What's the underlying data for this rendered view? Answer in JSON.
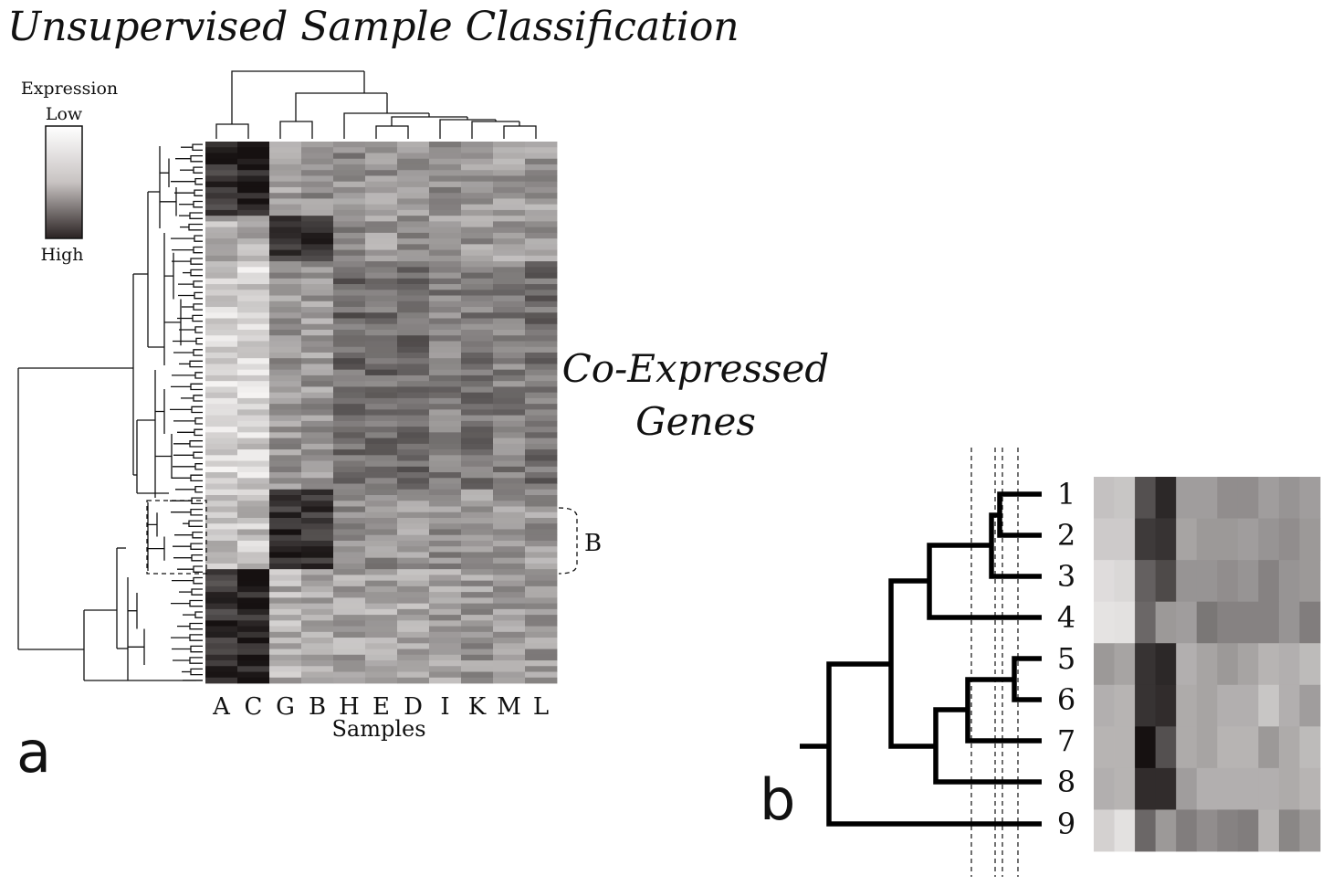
{
  "title": "Unsupervised Sample Classification",
  "legend": {
    "heading": "Expression",
    "low": "Low",
    "high": "High"
  },
  "panel_a": {
    "letter": "a",
    "columns": [
      "A",
      "C",
      "G",
      "B",
      "H",
      "E",
      "D",
      "I",
      "K",
      "M",
      "L"
    ],
    "x_axis_label": "Samples",
    "side_label_line1": "Co-Expressed",
    "side_label_line2": "Genes",
    "highlight_label": "B"
  },
  "panel_b": {
    "letter": "b",
    "leaves": [
      "1",
      "2",
      "3",
      "4",
      "5",
      "6",
      "7",
      "8",
      "9"
    ]
  },
  "chart_data": {
    "type": "heatmap",
    "title": "Unsupervised Sample Classification",
    "xlabel": "Samples",
    "ylabel": "Co-Expressed Genes",
    "colorscale": [
      "#f5f3f2",
      "#1a1414"
    ],
    "sample_order": [
      "A",
      "C",
      "G",
      "B",
      "H",
      "E",
      "D",
      "I",
      "K",
      "M",
      "L"
    ],
    "sample_clusters": [
      [
        "A",
        "C"
      ],
      [
        "G",
        "B"
      ],
      [
        "H",
        "E",
        "D",
        "I",
        "K",
        "M",
        "L"
      ]
    ],
    "gene_blocks": [
      {
        "rows": 13,
        "profile": [
          0.85,
          0.95,
          0.4,
          0.45,
          0.45,
          0.42,
          0.44,
          0.42,
          0.4,
          0.38,
          0.4
        ]
      },
      {
        "rows": 8,
        "profile": [
          0.3,
          0.28,
          0.85,
          0.85,
          0.45,
          0.4,
          0.42,
          0.4,
          0.4,
          0.38,
          0.4
        ]
      },
      {
        "rows": 40,
        "profile": [
          0.15,
          0.15,
          0.4,
          0.4,
          0.62,
          0.6,
          0.62,
          0.52,
          0.55,
          0.5,
          0.58
        ]
      },
      {
        "rows": 14,
        "profile": [
          0.2,
          0.22,
          0.88,
          0.85,
          0.42,
          0.45,
          0.4,
          0.45,
          0.4,
          0.42,
          0.4
        ]
      },
      {
        "rows": 20,
        "profile": [
          0.85,
          0.92,
          0.3,
          0.32,
          0.35,
          0.33,
          0.35,
          0.38,
          0.4,
          0.38,
          0.4
        ]
      }
    ],
    "panel_b_matrix": [
      [
        0.22,
        0.2,
        0.72,
        0.9,
        0.38,
        0.38,
        0.45,
        0.45,
        0.38,
        0.42,
        0.38
      ],
      [
        0.18,
        0.18,
        0.82,
        0.85,
        0.35,
        0.4,
        0.4,
        0.38,
        0.42,
        0.45,
        0.4
      ],
      [
        0.1,
        0.12,
        0.65,
        0.75,
        0.42,
        0.42,
        0.45,
        0.42,
        0.5,
        0.42,
        0.4
      ],
      [
        0.07,
        0.08,
        0.62,
        0.4,
        0.38,
        0.55,
        0.5,
        0.5,
        0.5,
        0.42,
        0.52
      ],
      [
        0.4,
        0.35,
        0.85,
        0.9,
        0.3,
        0.35,
        0.4,
        0.35,
        0.28,
        0.3,
        0.25
      ],
      [
        0.3,
        0.28,
        0.85,
        0.88,
        0.32,
        0.35,
        0.3,
        0.3,
        0.2,
        0.3,
        0.38
      ],
      [
        0.28,
        0.28,
        1.0,
        0.72,
        0.32,
        0.35,
        0.28,
        0.28,
        0.4,
        0.32,
        0.25
      ],
      [
        0.3,
        0.28,
        0.88,
        0.88,
        0.38,
        0.3,
        0.3,
        0.3,
        0.3,
        0.32,
        0.28
      ],
      [
        0.15,
        0.08,
        0.62,
        0.4,
        0.52,
        0.45,
        0.5,
        0.52,
        0.28,
        0.48,
        0.4
      ]
    ]
  }
}
